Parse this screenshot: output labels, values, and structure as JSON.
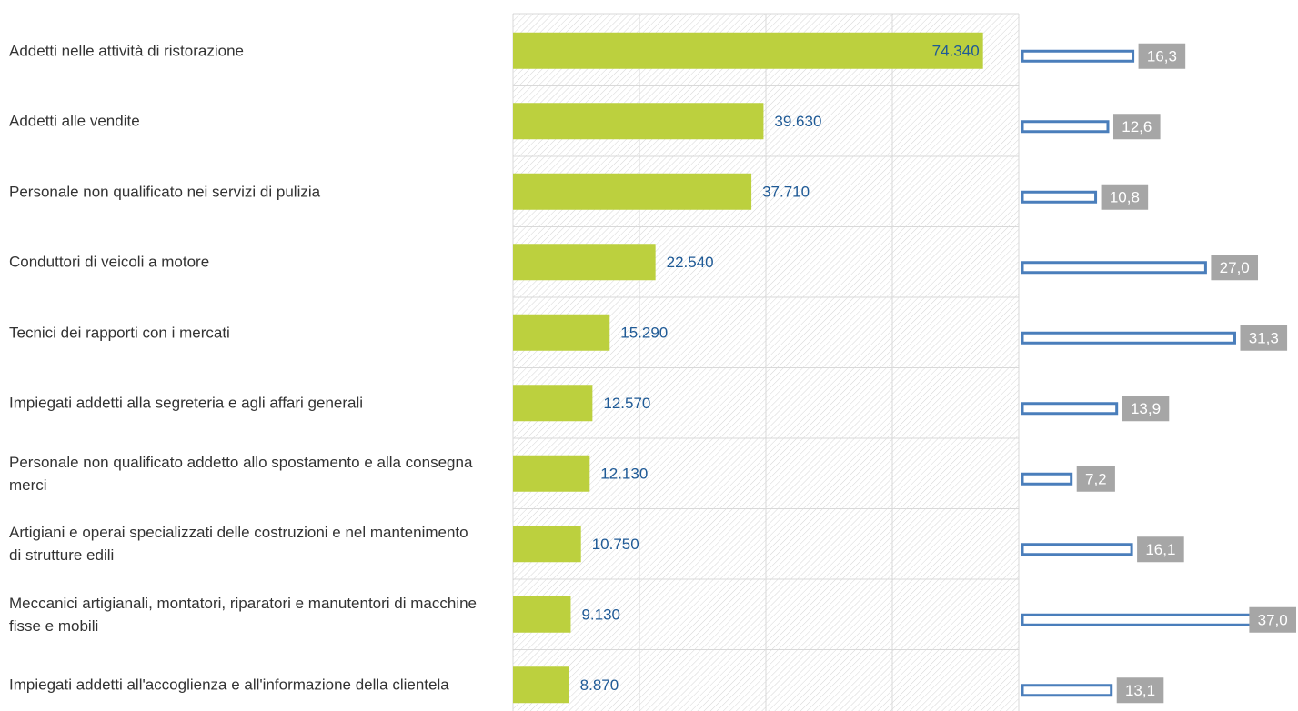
{
  "chart_data": [
    {
      "type": "bar",
      "orientation": "horizontal",
      "categories": [
        "Addetti nelle attività di ristorazione",
        "Addetti alle vendite",
        "Personale non qualificato nei servizi di pulizia",
        "Conduttori di veicoli a motore",
        "Tecnici dei rapporti con i mercati",
        "Impiegati addetti alla segreteria e agli affari generali",
        "Personale non qualificato addetto allo spostamento e alla consegna merci",
        "Artigiani e operai specializzati delle costruzioni e nel mantenimento di strutture edili",
        "Meccanici artigianali, montatori, riparatori e manutentori di macchine fisse e mobili",
        "Impiegati addetti all'accoglienza e all'informazione della clientela"
      ],
      "series": [
        {
          "values": [
            74340,
            39630,
            37710,
            22540,
            15290,
            12570,
            12130,
            10750,
            9130,
            8870
          ],
          "value_labels": [
            "74.340",
            "39.630",
            "37.710",
            "22.540",
            "15.290",
            "12.570",
            "12.130",
            "10.750",
            "9.130",
            "8.870"
          ],
          "color": "#bcd03e"
        }
      ],
      "xlim": [
        0,
        80000
      ],
      "grid": true,
      "legend": "none"
    },
    {
      "type": "bar",
      "orientation": "horizontal",
      "categories": [
        "Addetti nelle attività di ristorazione",
        "Addetti alle vendite",
        "Personale non qualificato nei servizi di pulizia",
        "Conduttori di veicoli a motore",
        "Tecnici dei rapporti con i mercati",
        "Impiegati addetti alla segreteria e agli affari generali",
        "Personale non qualificato addetto allo spostamento e alla consegna merci",
        "Artigiani e operai specializzati delle costruzioni e nel mantenimento di strutture edili",
        "Meccanici artigianali, montatori, riparatori e manutentori di macchine fisse e mobili",
        "Impiegati addetti all'accoglienza e all'informazione della clientela"
      ],
      "series": [
        {
          "values": [
            16.3,
            12.6,
            10.8,
            27.0,
            31.3,
            13.9,
            7.2,
            16.1,
            37.0,
            13.1
          ],
          "value_labels": [
            "16,3",
            "12,6",
            "10,8",
            "27,0",
            "31,3",
            "13,9",
            "7,2",
            "16,1",
            "37,0",
            "13,1"
          ],
          "color": "#4a7ebb"
        }
      ],
      "xlim": [
        0,
        37
      ],
      "grid": false,
      "legend": "none"
    }
  ]
}
